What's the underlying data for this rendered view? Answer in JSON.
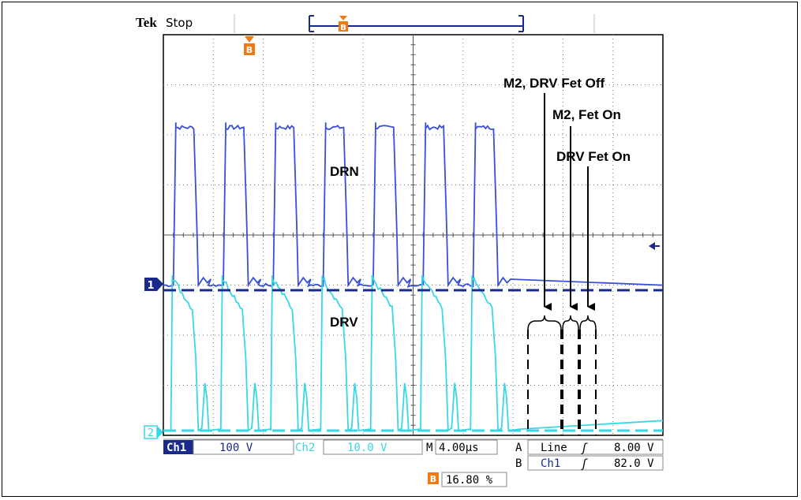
{
  "header": {
    "brand": "Tek",
    "status": "Stop"
  },
  "markers": {
    "trigger_marker": "B",
    "ch1_marker": "1",
    "ch2_marker": "2"
  },
  "chart_data": {
    "type": "line",
    "title": "",
    "xlabel": "",
    "ylabel": "",
    "x_divisions": 10,
    "y_divisions": 8,
    "grid": true,
    "series": [
      {
        "name": "DRN",
        "color": "#3a4fd8",
        "pulse_starts_div": [
          0.2,
          1.2,
          2.2,
          3.2,
          4.2,
          5.2,
          6.2
        ],
        "high_level_div": 3.25,
        "low_level_div": 0.1,
        "pulse_width_div": 0.45,
        "settled_width_div": 0.4,
        "overshoot_div": 0.1
      },
      {
        "name": "DRV",
        "color": "#39d7e6",
        "pulse_starts_div": [
          0.15,
          1.15,
          2.15,
          3.15,
          4.15,
          5.15,
          6.15
        ],
        "peak_level_div": 3.1,
        "low_level_div": 0.0,
        "fall_level_div": 2.4,
        "secondary_peak_div": 0.95
      }
    ],
    "annotations": [
      "M2, DRV Fet Off",
      "M2, Fet On",
      "DRV Fet On",
      "DRN",
      "DRV"
    ]
  },
  "readouts": {
    "ch1_label": "Ch1",
    "ch1_scale": "100 V",
    "ch2_label": "Ch2",
    "ch2_scale": "10.0 V",
    "time_label": "M",
    "time_scale": "4.00µs",
    "trig_a_label": "A",
    "trig_a_source": "Line",
    "trig_a_level": "8.00 V",
    "trig_b_label": "B",
    "trig_b_source": "Ch1",
    "trig_b_level": "82.0 V",
    "trig_pos_marker": "B",
    "trig_pos_value": "16.80 %",
    "slope_symbol": "ʃ"
  },
  "colors": {
    "ch1": "#3a4fd8",
    "ch2": "#39d7e6",
    "trigger": "#f07a12",
    "dark_blue": "#1a2a8a"
  }
}
